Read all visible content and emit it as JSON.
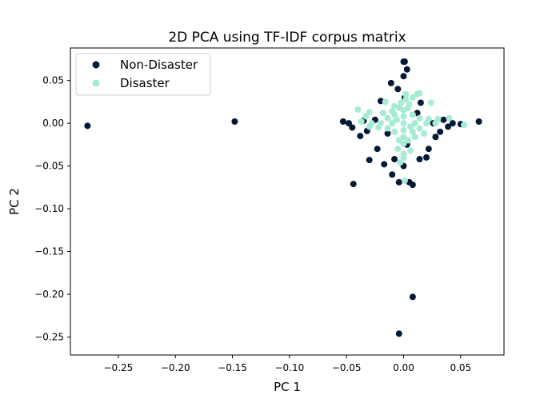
{
  "chart_data": {
    "type": "scatter",
    "title": "2D PCA using TF-IDF corpus matrix",
    "xlabel": "PC 1",
    "ylabel": "PC 2",
    "xlim": [
      -0.292,
      0.088
    ],
    "ylim": [
      -0.271,
      0.088
    ],
    "xticks": [
      -0.25,
      -0.2,
      -0.15,
      -0.1,
      -0.05,
      0.0,
      0.05
    ],
    "xtick_labels": [
      "−0.25",
      "−0.20",
      "−0.15",
      "−0.10",
      "−0.05",
      "0.00",
      "0.05"
    ],
    "yticks": [
      0.05,
      0.0,
      -0.05,
      -0.1,
      -0.15,
      -0.2,
      -0.25
    ],
    "ytick_labels": [
      "0.05",
      "0.00",
      "−0.05",
      "−0.10",
      "−0.15",
      "−0.20",
      "−0.25"
    ],
    "legend_position": "upper-left",
    "grid": false,
    "series": [
      {
        "name": "Non-Disaster",
        "color": "#021a36",
        "points": [
          [
            -0.277,
            -0.003
          ],
          [
            -0.148,
            0.002
          ],
          [
            -0.044,
            -0.071
          ],
          [
            -0.03,
            -0.043
          ],
          [
            -0.004,
            -0.246
          ],
          [
            0.008,
            -0.203
          ],
          [
            0.066,
            0.002
          ],
          [
            0.05,
            -0.001
          ],
          [
            -0.053,
            0.002
          ],
          [
            -0.048,
            0.0
          ],
          [
            -0.045,
            -0.005
          ],
          [
            0.043,
            0.0
          ],
          [
            0.039,
            -0.004
          ],
          [
            0.0,
            0.072
          ],
          [
            0.001,
            0.072
          ],
          [
            -0.011,
            0.047
          ],
          [
            0.003,
            0.063
          ],
          [
            -0.005,
            0.04
          ],
          [
            -0.017,
            -0.048
          ],
          [
            -0.01,
            -0.06
          ],
          [
            -0.004,
            -0.069
          ],
          [
            0.005,
            -0.069
          ],
          [
            0.008,
            -0.072
          ],
          [
            0.014,
            -0.042
          ],
          [
            -0.008,
            -0.042
          ],
          [
            0.0,
            -0.05
          ],
          [
            0.02,
            -0.04
          ],
          [
            -0.038,
            -0.015
          ],
          [
            -0.032,
            -0.009
          ],
          [
            0.032,
            -0.01
          ],
          [
            0.028,
            -0.016
          ],
          [
            -0.023,
            -0.03
          ],
          [
            0.022,
            -0.03
          ],
          [
            0.0,
            0.055
          ],
          [
            -0.02,
            0.026
          ],
          [
            0.015,
            0.024
          ],
          [
            0.026,
            0.0
          ],
          [
            -0.025,
            0.004
          ],
          [
            0.001,
            0.03
          ],
          [
            0.003,
            -0.025
          ],
          [
            -0.014,
            -0.012
          ],
          [
            0.012,
            0.012
          ],
          [
            -0.035,
            0.003
          ],
          [
            0.035,
            0.004
          ]
        ]
      },
      {
        "name": "Disaster",
        "color": "#a6ecd5",
        "points": [
          [
            -0.04,
            0.016
          ],
          [
            -0.033,
            0.008
          ],
          [
            -0.03,
            0.013
          ],
          [
            -0.037,
            0.002
          ],
          [
            0.024,
            0.024
          ],
          [
            0.04,
            0.006
          ],
          [
            0.053,
            -0.002
          ],
          [
            0.014,
            0.035
          ],
          [
            0.001,
            -0.067
          ],
          [
            -0.003,
            -0.046
          ],
          [
            0.0,
            -0.04
          ],
          [
            -0.016,
            0.025
          ],
          [
            0.008,
            0.03
          ],
          [
            0.012,
            0.034
          ],
          [
            0.002,
            0.028
          ],
          [
            -0.008,
            0.02
          ],
          [
            0.005,
            0.022
          ],
          [
            -0.002,
            0.024
          ],
          [
            0.0,
            0.015
          ],
          [
            0.0,
            0.008
          ],
          [
            0.0,
            0.0
          ],
          [
            0.0,
            -0.008
          ],
          [
            0.0,
            -0.016
          ],
          [
            0.0,
            -0.024
          ],
          [
            -0.01,
            0.0
          ],
          [
            -0.02,
            0.0
          ],
          [
            -0.028,
            0.0
          ],
          [
            0.01,
            0.0
          ],
          [
            0.02,
            0.0
          ],
          [
            0.028,
            0.0
          ],
          [
            -0.008,
            0.01
          ],
          [
            0.008,
            0.01
          ],
          [
            -0.008,
            -0.01
          ],
          [
            0.008,
            -0.01
          ],
          [
            -0.014,
            0.006
          ],
          [
            0.014,
            0.006
          ],
          [
            -0.014,
            -0.006
          ],
          [
            0.014,
            -0.006
          ],
          [
            -0.004,
            0.018
          ],
          [
            0.004,
            0.018
          ],
          [
            -0.004,
            -0.02
          ],
          [
            0.004,
            -0.02
          ],
          [
            -0.018,
            0.012
          ],
          [
            0.018,
            -0.012
          ],
          [
            -0.005,
            -0.03
          ],
          [
            0.006,
            -0.032
          ],
          [
            -0.022,
            -0.005
          ],
          [
            0.022,
            0.005
          ],
          [
            0.0,
            -0.036
          ],
          [
            -0.01,
            0.014
          ],
          [
            0.01,
            -0.016
          ],
          [
            -0.006,
            0.004
          ],
          [
            0.006,
            -0.004
          ],
          [
            0.03,
            0.005
          ],
          [
            -0.03,
            -0.004
          ],
          [
            0.002,
            0.034
          ]
        ]
      }
    ]
  }
}
